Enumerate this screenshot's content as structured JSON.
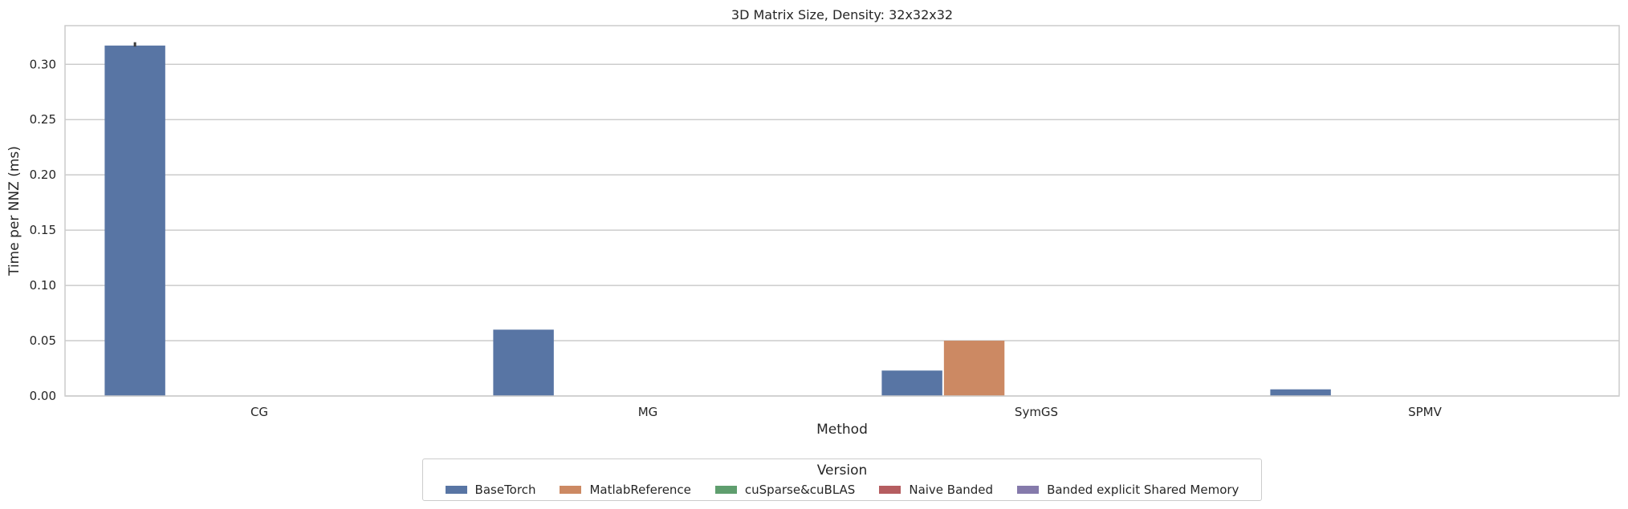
{
  "chart_data": {
    "type": "bar",
    "title": "3D Matrix Size, Density: 32x32x32",
    "xlabel": "Method",
    "ylabel": "Time per NNZ (ms)",
    "categories": [
      "CG",
      "MG",
      "SymGS",
      "SPMV"
    ],
    "ylim": [
      0,
      0.335
    ],
    "yticks": [
      "0.00",
      "0.05",
      "0.10",
      "0.15",
      "0.20",
      "0.25",
      "0.30"
    ],
    "grid": true,
    "legend_title": "Version",
    "legend_position": "bottom-center",
    "series": [
      {
        "name": "BaseTorch",
        "color": "#5875a4",
        "values": [
          0.317,
          0.06,
          0.023,
          0.006
        ]
      },
      {
        "name": "MatlabReference",
        "color": "#cc8963",
        "values": [
          null,
          null,
          0.05,
          null
        ]
      },
      {
        "name": "cuSparse&cuBLAS",
        "color": "#5f9e6e",
        "values": [
          null,
          null,
          null,
          null
        ]
      },
      {
        "name": "Naive Banded",
        "color": "#b55d60",
        "values": [
          null,
          null,
          null,
          null
        ]
      },
      {
        "name": "Banded explicit Shared Memory",
        "color": "#857aab",
        "values": [
          null,
          null,
          null,
          null
        ]
      }
    ],
    "error_bars": [
      {
        "series": "BaseTorch",
        "category": "CG",
        "low": 0.316,
        "high": 0.32
      }
    ]
  }
}
